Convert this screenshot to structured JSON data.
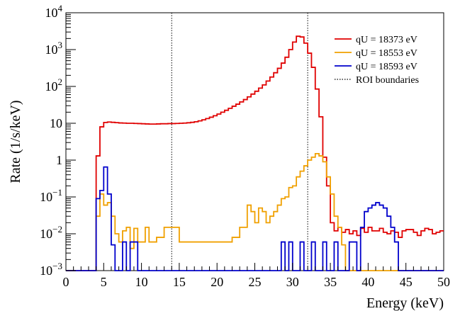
{
  "chart_data": {
    "type": "line",
    "title": "",
    "xlabel": "Energy (keV)",
    "ylabel": "Rate (1/s/keV)",
    "xlim": [
      0,
      50
    ],
    "ylim": [
      0.001,
      10000
    ],
    "yscale": "log",
    "grid": false,
    "legend_position": "top-right",
    "x_ticks": [
      "0",
      "5",
      "10",
      "15",
      "20",
      "25",
      "30",
      "35",
      "40",
      "45",
      "50"
    ],
    "x_tick_values": [
      0,
      5,
      10,
      15,
      20,
      25,
      30,
      35,
      40,
      45,
      50
    ],
    "y_ticks": [
      {
        "value": 0.001,
        "base": "10",
        "exp": "−3"
      },
      {
        "value": 0.01,
        "base": "10",
        "exp": "−2"
      },
      {
        "value": 0.1,
        "base": "10",
        "exp": "−1"
      },
      {
        "value": 1,
        "base": "1",
        "exp": ""
      },
      {
        "value": 10,
        "base": "10",
        "exp": ""
      },
      {
        "value": 100,
        "base": "10",
        "exp": "2"
      },
      {
        "value": 1000,
        "base": "10",
        "exp": "3"
      },
      {
        "value": 10000,
        "base": "10",
        "exp": "4"
      }
    ],
    "bin_width": 0.5,
    "bin_start": 0,
    "roi": {
      "label": "ROI boundaries",
      "x": [
        14,
        32
      ]
    },
    "series": [
      {
        "name": "qU = 18373 eV",
        "color": "#e00000",
        "values": [
          0.001,
          0.001,
          0.001,
          0.001,
          0.001,
          0.001,
          0.001,
          0.001,
          1.3,
          8,
          10.5,
          10.8,
          10.6,
          10.4,
          10.2,
          10.1,
          10.0,
          10.0,
          9.9,
          9.8,
          9.7,
          9.6,
          9.5,
          9.5,
          9.6,
          9.7,
          9.7,
          9.8,
          9.8,
          9.9,
          10.0,
          10.1,
          10.3,
          10.6,
          11.0,
          11.6,
          12.4,
          13.4,
          14.6,
          16,
          17.8,
          20,
          22.5,
          25.5,
          29,
          33,
          38,
          44,
          52,
          62,
          74,
          90,
          110,
          140,
          180,
          235,
          310,
          430,
          620,
          1000,
          1600,
          2300,
          2200,
          1500,
          800,
          330,
          85,
          15,
          1.2,
          0.2,
          0.02,
          0.012,
          0.015,
          0.011,
          0.013,
          0.01,
          0.012,
          0.009,
          0.014,
          0.011,
          0.015,
          0.012,
          0.012,
          0.014,
          0.011,
          0.01,
          0.012,
          0.011,
          0.008,
          0.012,
          0.013,
          0.013,
          0.011,
          0.009,
          0.012,
          0.014,
          0.013,
          0.01,
          0.011,
          0.012
        ]
      },
      {
        "name": "qU = 18553 eV",
        "color": "#f0a000",
        "values": [
          0.001,
          0.001,
          0.001,
          0.001,
          0.001,
          0.001,
          0.001,
          0.001,
          0.03,
          0.12,
          0.06,
          0.07,
          0.03,
          0.01,
          0.006,
          0.012,
          0.015,
          0.004,
          0.014,
          0.006,
          0.006,
          0.015,
          0.006,
          0.006,
          0.008,
          0.008,
          0.015,
          0.015,
          0.015,
          0.015,
          0.006,
          0.006,
          0.006,
          0.006,
          0.006,
          0.006,
          0.006,
          0.006,
          0.006,
          0.006,
          0.006,
          0.006,
          0.006,
          0.006,
          0.008,
          0.008,
          0.015,
          0.015,
          0.06,
          0.04,
          0.02,
          0.05,
          0.04,
          0.02,
          0.03,
          0.04,
          0.06,
          0.09,
          0.1,
          0.18,
          0.2,
          0.35,
          0.5,
          0.7,
          1.0,
          1.2,
          1.5,
          1.3,
          0.9,
          0.35,
          0.12,
          0.03,
          0.015,
          0.005,
          0.001,
          0.001,
          0.001,
          0.001,
          0.001,
          0.001,
          0.001,
          0.001,
          0.001,
          0.001,
          0.001,
          0.001,
          0.001,
          0.001,
          0.001,
          0.001,
          0.001,
          0.001,
          0.001,
          0.001,
          0.001,
          0.001,
          0.001,
          0.001,
          0.001,
          0.001
        ]
      },
      {
        "name": "qU = 18593 eV",
        "color": "#0000cc",
        "values": [
          0.001,
          0.001,
          0.001,
          0.001,
          0.001,
          0.001,
          0.001,
          0.001,
          0.09,
          0.15,
          0.65,
          0.12,
          0.005,
          0.001,
          0.001,
          0.006,
          0.001,
          0.006,
          0.006,
          0.001,
          0.001,
          0.001,
          0.001,
          0.001,
          0.001,
          0.001,
          0.001,
          0.001,
          0.001,
          0.001,
          0.001,
          0.001,
          0.001,
          0.001,
          0.001,
          0.001,
          0.001,
          0.001,
          0.001,
          0.001,
          0.001,
          0.001,
          0.001,
          0.001,
          0.001,
          0.001,
          0.001,
          0.001,
          0.001,
          0.001,
          0.001,
          0.001,
          0.001,
          0.001,
          0.001,
          0.001,
          0.001,
          0.006,
          0.001,
          0.006,
          0.001,
          0.001,
          0.006,
          0.001,
          0.001,
          0.006,
          0.001,
          0.001,
          0.006,
          0.001,
          0.001,
          0.006,
          0.001,
          0.001,
          0.001,
          0.006,
          0.006,
          0.001,
          0.015,
          0.04,
          0.05,
          0.06,
          0.07,
          0.06,
          0.05,
          0.03,
          0.015,
          0.006,
          0.001,
          0.001,
          0.001,
          0.001,
          0.001,
          0.001,
          0.001,
          0.001,
          0.001,
          0.001,
          0.001,
          0.001
        ]
      }
    ]
  }
}
